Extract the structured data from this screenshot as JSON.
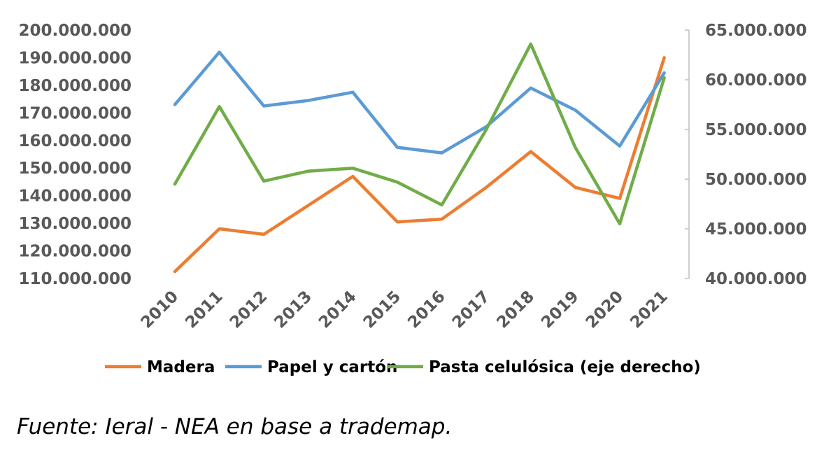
{
  "chart_data": {
    "type": "line",
    "categories": [
      "2010",
      "2011",
      "2012",
      "2013",
      "2014",
      "2015",
      "2016",
      "2017",
      "2018",
      "2019",
      "2020",
      "2021"
    ],
    "y_left": {
      "range": [
        110000000,
        200000000
      ],
      "ticks": [
        "110.000.000",
        "120.000.000",
        "130.000.000",
        "140.000.000",
        "150.000.000",
        "160.000.000",
        "170.000.000",
        "180.000.000",
        "190.000.000",
        "200.000.000"
      ]
    },
    "y_right": {
      "range": [
        40000000,
        65000000
      ],
      "ticks": [
        "40.000.000",
        "45.000.000",
        "50.000.000",
        "55.000.000",
        "60.000.000",
        "65.000.000"
      ]
    },
    "series": [
      {
        "name": "Madera",
        "color": "#ED7D31",
        "axis": "left",
        "values": [
          112500000,
          128000000,
          126000000,
          136500000,
          147000000,
          130500000,
          131500000,
          143000000,
          156000000,
          143000000,
          139000000,
          190000000
        ]
      },
      {
        "name": "Papel y cartón",
        "color": "#5B9BD5",
        "axis": "left",
        "values": [
          173000000,
          192000000,
          172500000,
          174500000,
          177500000,
          157500000,
          155500000,
          165000000,
          179000000,
          171000000,
          158000000,
          184500000
        ]
      },
      {
        "name": "Pasta celulósica (eje derecho)",
        "color": "#70AD47",
        "axis": "right",
        "values": [
          49500000,
          57300000,
          49800000,
          50800000,
          51100000,
          49700000,
          47400000,
          55000000,
          63600000,
          53200000,
          45500000,
          60200000
        ]
      }
    ],
    "grid": false,
    "legend_position": "bottom"
  },
  "source_note": "Fuente: Ieral - NEA en base a trademap."
}
